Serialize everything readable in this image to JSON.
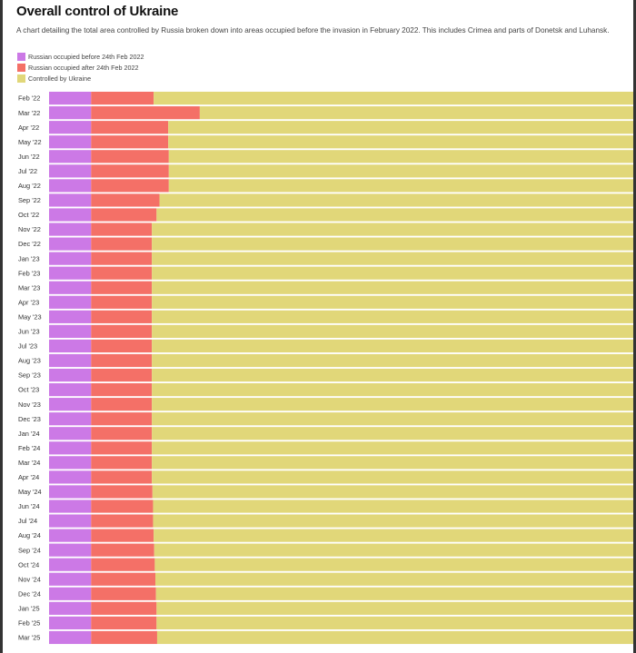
{
  "colors": {
    "before": "#cc79e6",
    "after": "#f47067",
    "ukraine": "#e1d779",
    "background": "#ffffff"
  },
  "chart_data": {
    "type": "bar",
    "orientation": "horizontal",
    "stacked": "percent",
    "title": "Overall control of Ukraine",
    "subtitle": "A chart detailing the total area controlled by Russia broken down into areas occupied before the invasion in February 2022. This includes Crimea and parts of Donetsk and Luhansk.",
    "legend_position": "top-left",
    "grid": false,
    "xlim": [
      0,
      100
    ],
    "categories": [
      "Feb '22",
      "Mar '22",
      "Apr '22",
      "May '22",
      "Jun '22",
      "Jul '22",
      "Aug '22",
      "Sep '22",
      "Oct '22",
      "Nov '22",
      "Dec '22",
      "Jan '23",
      "Feb '23",
      "Mar '23",
      "Apr '23",
      "May '23",
      "Jun '23",
      "Jul '23",
      "Aug '23",
      "Sep '23",
      "Oct '23",
      "Nov '23",
      "Dec '23",
      "Jan '24",
      "Feb '24",
      "Mar '24",
      "Apr '24",
      "May '24",
      "Jun '24",
      "Jul '24",
      "Aug '24",
      "Sep '24",
      "Oct '24",
      "Nov '24",
      "Dec '24",
      "Jan '25",
      "Feb '25",
      "Mar '25"
    ],
    "series": [
      {
        "name": "Russian occupied before 24th Feb 2022",
        "color": "#cc79e6",
        "values": [
          7.2,
          7.2,
          7.2,
          7.2,
          7.2,
          7.2,
          7.2,
          7.2,
          7.2,
          7.2,
          7.2,
          7.2,
          7.2,
          7.2,
          7.2,
          7.2,
          7.2,
          7.2,
          7.2,
          7.2,
          7.2,
          7.2,
          7.2,
          7.2,
          7.2,
          7.2,
          7.2,
          7.2,
          7.2,
          7.2,
          7.2,
          7.2,
          7.2,
          7.2,
          7.2,
          7.2,
          7.2,
          7.2
        ]
      },
      {
        "name": "Russian occupied after 24th Feb 2022",
        "color": "#f47067",
        "values": [
          10.7,
          18.6,
          13.2,
          13.2,
          13.3,
          13.3,
          13.3,
          11.7,
          11.2,
          10.4,
          10.4,
          10.4,
          10.4,
          10.4,
          10.4,
          10.4,
          10.4,
          10.4,
          10.4,
          10.4,
          10.4,
          10.4,
          10.4,
          10.4,
          10.4,
          10.4,
          10.4,
          10.5,
          10.6,
          10.6,
          10.7,
          10.8,
          10.9,
          11.0,
          11.1,
          11.2,
          11.2,
          11.3
        ]
      },
      {
        "name": "Controlled by Ukraine",
        "color": "#e1d779",
        "values": [
          82.1,
          74.2,
          79.6,
          79.6,
          79.5,
          79.5,
          79.5,
          81.1,
          81.6,
          82.4,
          82.4,
          82.4,
          82.4,
          82.4,
          82.4,
          82.4,
          82.4,
          82.4,
          82.4,
          82.4,
          82.4,
          82.4,
          82.4,
          82.4,
          82.4,
          82.4,
          82.4,
          82.3,
          82.2,
          82.2,
          82.1,
          82.0,
          81.9,
          81.8,
          81.7,
          81.6,
          81.6,
          81.5
        ]
      }
    ]
  }
}
